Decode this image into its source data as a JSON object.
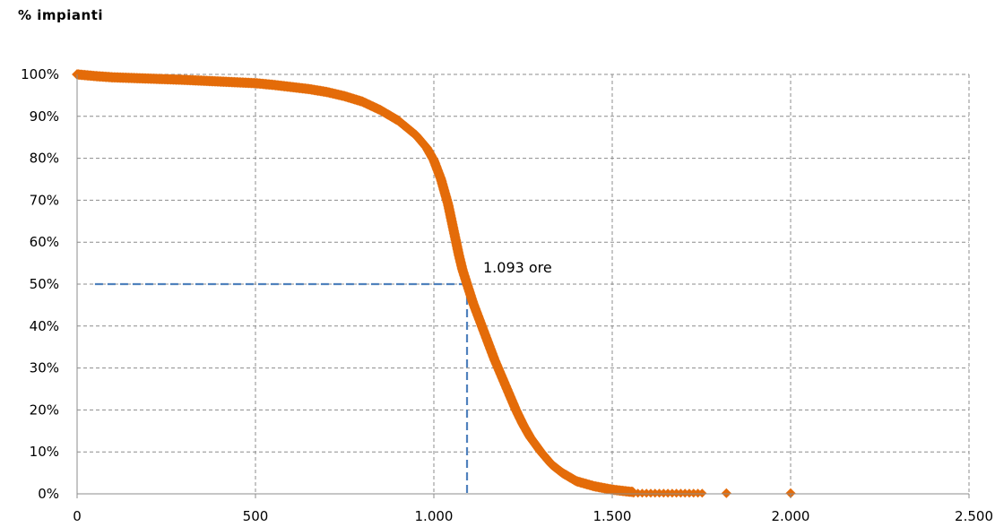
{
  "chart_data": {
    "type": "scatter",
    "title": "% impianti",
    "xlabel": "",
    "ylabel": "",
    "xlim": [
      0,
      2500
    ],
    "ylim": [
      0,
      100
    ],
    "x_ticks": [
      0,
      500,
      1000,
      1500,
      2000,
      2500
    ],
    "x_tick_labels": [
      "0",
      "500",
      "1.000",
      "1.500",
      "2.000",
      "2.500"
    ],
    "y_ticks": [
      0,
      10,
      20,
      30,
      40,
      50,
      60,
      70,
      80,
      90,
      100
    ],
    "y_tick_labels": [
      "0%",
      "10%",
      "20%",
      "30%",
      "40%",
      "50%",
      "60%",
      "70%",
      "80%",
      "90%",
      "100%"
    ],
    "grid": true,
    "legend": "none",
    "series_color": "#E46C0A",
    "reference_color": "#4F81BD",
    "series": [
      {
        "points": [
          [
            0,
            100
          ],
          [
            50,
            99.6
          ],
          [
            100,
            99.3
          ],
          [
            200,
            99.0
          ],
          [
            300,
            98.7
          ],
          [
            400,
            98.3
          ],
          [
            500,
            97.9
          ],
          [
            550,
            97.5
          ],
          [
            600,
            97.0
          ],
          [
            650,
            96.5
          ],
          [
            700,
            95.8
          ],
          [
            750,
            94.8
          ],
          [
            800,
            93.5
          ],
          [
            850,
            91.5
          ],
          [
            900,
            89.0
          ],
          [
            950,
            85.5
          ],
          [
            980,
            82.5
          ],
          [
            1000,
            79.5
          ],
          [
            1020,
            75.0
          ],
          [
            1040,
            69.0
          ],
          [
            1055,
            63.0
          ],
          [
            1070,
            57.0
          ],
          [
            1080,
            53.5
          ],
          [
            1093,
            50.0
          ],
          [
            1110,
            45.5
          ],
          [
            1130,
            41.0
          ],
          [
            1150,
            36.5
          ],
          [
            1170,
            32.0
          ],
          [
            1190,
            28.0
          ],
          [
            1210,
            24.0
          ],
          [
            1230,
            20.0
          ],
          [
            1250,
            16.5
          ],
          [
            1270,
            13.5
          ],
          [
            1300,
            10.0
          ],
          [
            1330,
            7.0
          ],
          [
            1360,
            5.0
          ],
          [
            1400,
            3.0
          ],
          [
            1450,
            1.8
          ],
          [
            1500,
            1.0
          ],
          [
            1550,
            0.5
          ],
          [
            1600,
            0.3
          ],
          [
            1650,
            0.2
          ],
          [
            1700,
            0.1
          ],
          [
            1750,
            0.1
          ],
          [
            1820,
            0.1
          ],
          [
            2000,
            0.0
          ]
        ]
      }
    ],
    "reference": {
      "x": 1093,
      "y": 50,
      "x_start": 50,
      "label": "1.093 ore"
    }
  }
}
